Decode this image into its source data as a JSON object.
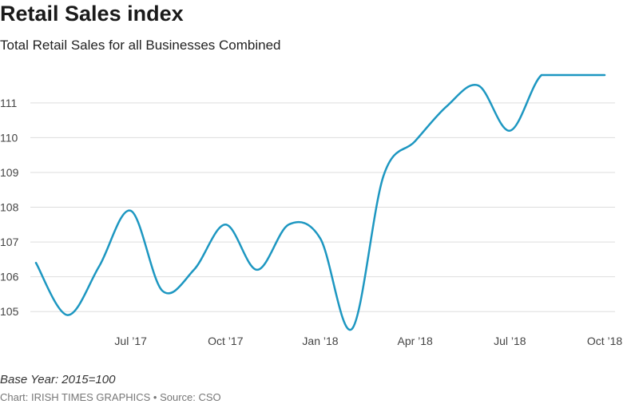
{
  "title": "Retail Sales index",
  "subtitle": "Total Retail Sales for all Businesses Combined",
  "note": "Base Year: 2015=100",
  "credit": "Chart: IRISH TIMES GRAPHICS • Source: CSO",
  "colors": {
    "line": "#1d97c1",
    "grid": "#dddddd"
  },
  "chart_data": {
    "type": "line",
    "title": "Retail Sales index",
    "subtitle": "Total Retail Sales for all Businesses Combined",
    "xlabel": "",
    "ylabel": "",
    "ylim": [
      104.6,
      111.8
    ],
    "yticks": [
      105,
      106,
      107,
      108,
      109,
      110,
      111
    ],
    "xticks": [
      {
        "label": "Jul ’17",
        "date": "2017-07"
      },
      {
        "label": "Oct ’17",
        "date": "2017-10"
      },
      {
        "label": "Jan ’18",
        "date": "2018-01"
      },
      {
        "label": "Apr ’18",
        "date": "2018-04"
      },
      {
        "label": "Jul ’18",
        "date": "2018-07"
      },
      {
        "label": "Oct ’18",
        "date": "2018-10"
      }
    ],
    "grid": true,
    "legend": "none",
    "series": [
      {
        "x": [
          "2017-04",
          "2017-05",
          "2017-06",
          "2017-07",
          "2017-08",
          "2017-09",
          "2017-10",
          "2017-11",
          "2017-12",
          "2018-01",
          "2018-02",
          "2018-03",
          "2018-04",
          "2018-05",
          "2018-06",
          "2018-07",
          "2018-08",
          "2018-09",
          "2018-10"
        ],
        "values": [
          106.4,
          104.9,
          106.3,
          107.9,
          105.6,
          106.2,
          107.5,
          106.2,
          107.5,
          107.1,
          104.5,
          108.9,
          109.9,
          110.9,
          111.5,
          110.2,
          111.8,
          111.8,
          111.8
        ]
      }
    ]
  }
}
